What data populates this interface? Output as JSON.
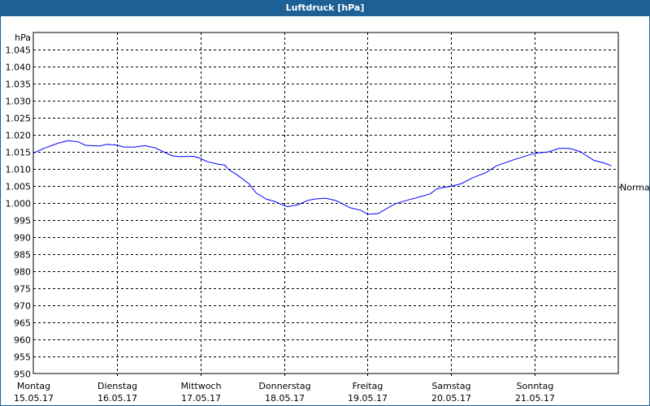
{
  "window": {
    "title": "Luftdruck [hPa]"
  },
  "chart_data": {
    "type": "line",
    "title": "Luftdruck [hPa]",
    "ylabel": "hPa",
    "ylim": [
      950,
      1050
    ],
    "yticks": [
      950,
      955,
      960,
      965,
      970,
      975,
      980,
      985,
      990,
      995,
      1000,
      1005,
      1010,
      1015,
      1020,
      1025,
      1030,
      1035,
      1040,
      1045
    ],
    "ytick_labels": [
      "950",
      "955",
      "960",
      "965",
      "970",
      "975",
      "980",
      "985",
      "990",
      "995",
      "1.000",
      "1.005",
      "1.010",
      "1.015",
      "1.020",
      "1.025",
      "1.030",
      "1.035",
      "1.040",
      "1.045"
    ],
    "xlim": [
      "2017-05-15T00:00",
      "2017-05-22T00:00"
    ],
    "xticks": [
      {
        "day": "Montag",
        "date": "15.05.17",
        "t": "2017-05-15T00:00"
      },
      {
        "day": "Dienstag",
        "date": "16.05.17",
        "t": "2017-05-16T00:00"
      },
      {
        "day": "Mittwoch",
        "date": "17.05.17",
        "t": "2017-05-17T00:00"
      },
      {
        "day": "Donnerstag",
        "date": "18.05.17",
        "t": "2017-05-18T00:00"
      },
      {
        "day": "Freitag",
        "date": "19.05.17",
        "t": "2017-05-19T00:00"
      },
      {
        "day": "Samstag",
        "date": "20.05.17",
        "t": "2017-05-20T00:00"
      },
      {
        "day": "Sonntag",
        "date": "21.05.17",
        "t": "2017-05-21T00:00"
      }
    ],
    "grid": true,
    "reference_line": {
      "label": "Normal",
      "value": 1004.8
    },
    "series": [
      {
        "color": "#0000ff",
        "points": [
          [
            "2017-05-15T00:00",
            1014.6
          ],
          [
            "2017-05-15T03:00",
            1016.0
          ],
          [
            "2017-05-15T07:00",
            1017.5
          ],
          [
            "2017-05-15T10:00",
            1018.3
          ],
          [
            "2017-05-15T13:00",
            1017.9
          ],
          [
            "2017-05-15T15:00",
            1016.9
          ],
          [
            "2017-05-15T19:00",
            1016.7
          ],
          [
            "2017-05-15T21:00",
            1017.2
          ],
          [
            "2017-05-16T00:00",
            1017.0
          ],
          [
            "2017-05-16T02:00",
            1016.4
          ],
          [
            "2017-05-16T05:00",
            1016.4
          ],
          [
            "2017-05-16T08:00",
            1016.8
          ],
          [
            "2017-05-16T11:00",
            1016.2
          ],
          [
            "2017-05-16T13:00",
            1015.2
          ],
          [
            "2017-05-16T16:00",
            1013.8
          ],
          [
            "2017-05-16T18:00",
            1013.6
          ],
          [
            "2017-05-16T22:00",
            1013.7
          ],
          [
            "2017-05-17T00:00",
            1013.1
          ],
          [
            "2017-05-17T02:00",
            1012.1
          ],
          [
            "2017-05-17T05:00",
            1011.4
          ],
          [
            "2017-05-17T07:00",
            1011.1
          ],
          [
            "2017-05-17T08:00",
            1009.9
          ],
          [
            "2017-05-17T11:00",
            1007.9
          ],
          [
            "2017-05-17T14:00",
            1005.6
          ],
          [
            "2017-05-17T16:00",
            1002.9
          ],
          [
            "2017-05-17T19:00",
            1001.1
          ],
          [
            "2017-05-17T21:00",
            1000.6
          ],
          [
            "2017-05-17T23:00",
            999.7
          ],
          [
            "2017-05-18T01:00",
            998.9
          ],
          [
            "2017-05-18T04:00",
            999.5
          ],
          [
            "2017-05-18T07:00",
            1000.8
          ],
          [
            "2017-05-18T09:00",
            1001.2
          ],
          [
            "2017-05-18T12:00",
            1001.4
          ],
          [
            "2017-05-18T15:00",
            1000.7
          ],
          [
            "2017-05-18T19:00",
            998.6
          ],
          [
            "2017-05-18T22:00",
            997.9
          ],
          [
            "2017-05-19T00:00",
            996.7
          ],
          [
            "2017-05-19T03:00",
            996.9
          ],
          [
            "2017-05-19T08:00",
            999.8
          ],
          [
            "2017-05-19T12:00",
            1001.0
          ],
          [
            "2017-05-19T15:00",
            1001.8
          ],
          [
            "2017-05-19T18:00",
            1002.7
          ],
          [
            "2017-05-19T20:00",
            1004.2
          ],
          [
            "2017-05-20T00:00",
            1004.9
          ],
          [
            "2017-05-20T03:00",
            1005.7
          ],
          [
            "2017-05-20T06:00",
            1007.3
          ],
          [
            "2017-05-20T10:00",
            1008.9
          ],
          [
            "2017-05-20T13:00",
            1010.9
          ],
          [
            "2017-05-20T18:00",
            1012.7
          ],
          [
            "2017-05-21T00:00",
            1014.6
          ],
          [
            "2017-05-21T04:00",
            1015.0
          ],
          [
            "2017-05-21T07:00",
            1016.0
          ],
          [
            "2017-05-21T10:00",
            1016.0
          ],
          [
            "2017-05-21T13:00",
            1015.1
          ],
          [
            "2017-05-21T17:00",
            1012.5
          ],
          [
            "2017-05-21T20:00",
            1011.7
          ],
          [
            "2017-05-21T22:00",
            1010.9
          ]
        ]
      }
    ]
  }
}
